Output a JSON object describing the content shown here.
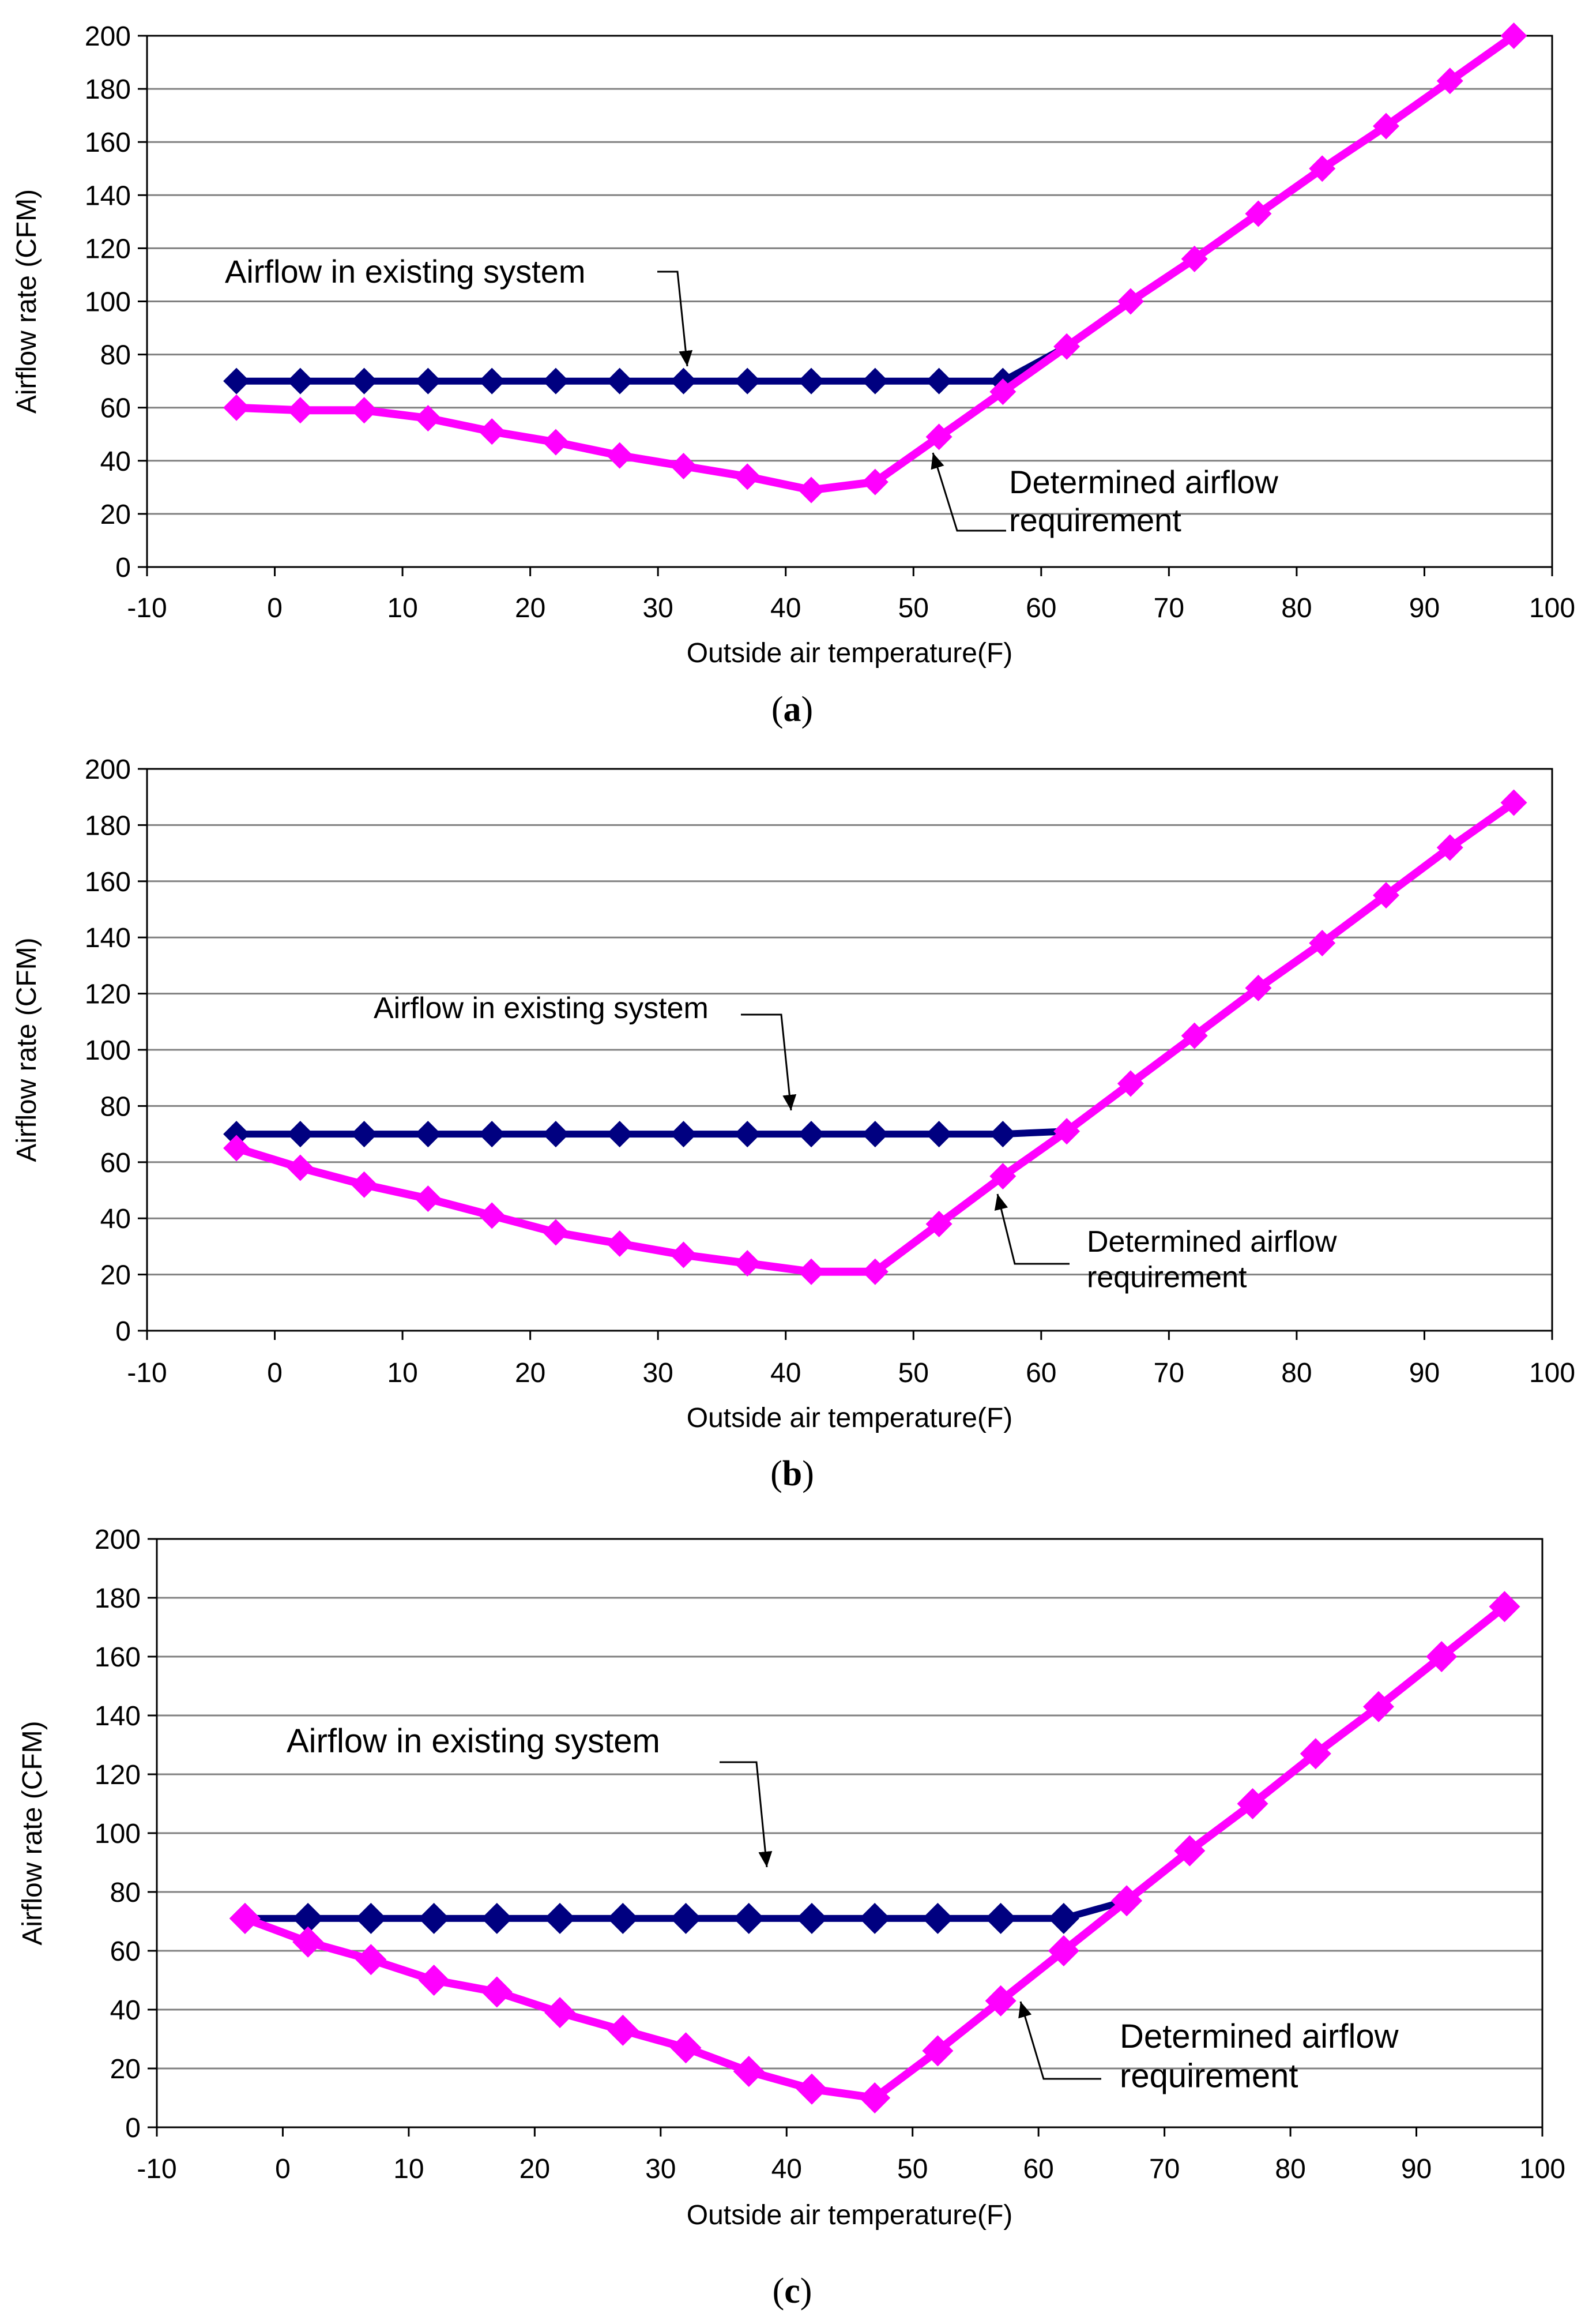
{
  "colors": {
    "existing_line": "#000080",
    "requirement_line": "#FF00FF",
    "grid": "#808080",
    "axis": "#000000",
    "text": "#000000"
  },
  "chart_data": [
    {
      "type": "line",
      "caption_letter": "a",
      "xlabel": "Outside air temperature(F)",
      "ylabel": "Airflow rate (CFM)",
      "xlim": [
        -10,
        100
      ],
      "ylim": [
        0,
        200
      ],
      "xticks": [
        -10,
        0,
        10,
        20,
        30,
        40,
        50,
        60,
        70,
        80,
        90,
        100
      ],
      "yticks": [
        0,
        20,
        40,
        60,
        80,
        100,
        120,
        140,
        160,
        180,
        200
      ],
      "grid": true,
      "x": [
        -3,
        2,
        7,
        12,
        17,
        22,
        27,
        32,
        37,
        42,
        47,
        52,
        57,
        62,
        67,
        72,
        77,
        82,
        87,
        92,
        97
      ],
      "series": [
        {
          "name": "Airflow in existing system",
          "values": [
            70,
            70,
            70,
            70,
            70,
            70,
            70,
            70,
            70,
            70,
            70,
            70,
            70,
            83,
            100,
            116,
            133,
            150,
            166,
            183,
            200
          ],
          "marker_count": 13
        },
        {
          "name": "Determined airflow requirement",
          "values": [
            60,
            59,
            59,
            56,
            51,
            47,
            42,
            38,
            34,
            29,
            32,
            49,
            66,
            83,
            100,
            116,
            133,
            150,
            166,
            183,
            200
          ]
        }
      ],
      "annotations": [
        {
          "text": "Airflow in existing system"
        },
        {
          "text": "Determined airflow",
          "text2": "requirement"
        }
      ]
    },
    {
      "type": "line",
      "caption_letter": "b",
      "xlabel": "Outside air temperature(F)",
      "ylabel": "Airflow rate (CFM)",
      "xlim": [
        -10,
        100
      ],
      "ylim": [
        0,
        200
      ],
      "xticks": [
        -10,
        0,
        10,
        20,
        30,
        40,
        50,
        60,
        70,
        80,
        90,
        100
      ],
      "yticks": [
        0,
        20,
        40,
        60,
        80,
        100,
        120,
        140,
        160,
        180,
        200
      ],
      "grid": true,
      "x": [
        -3,
        2,
        7,
        12,
        17,
        22,
        27,
        32,
        37,
        42,
        47,
        52,
        57,
        62,
        67,
        72,
        77,
        82,
        87,
        92,
        97
      ],
      "series": [
        {
          "name": "Airflow in existing system",
          "values": [
            70,
            70,
            70,
            70,
            70,
            70,
            70,
            70,
            70,
            70,
            70,
            70,
            70,
            71,
            88,
            105,
            122,
            138,
            155,
            172,
            188
          ],
          "marker_count": 13
        },
        {
          "name": "Determined airflow requirement",
          "values": [
            65,
            58,
            52,
            47,
            41,
            35,
            31,
            27,
            24,
            21,
            21,
            38,
            55,
            71,
            88,
            105,
            122,
            138,
            155,
            172,
            188
          ]
        }
      ],
      "annotations": [
        {
          "text": "Airflow in existing system"
        },
        {
          "text": "Determined airflow",
          "text2": "requirement"
        }
      ]
    },
    {
      "type": "line",
      "caption_letter": "c",
      "xlabel": "Outside air temperature(F)",
      "ylabel": "Airflow rate (CFM)",
      "xlim": [
        -10,
        100
      ],
      "ylim": [
        0,
        200
      ],
      "xticks": [
        -10,
        0,
        10,
        20,
        30,
        40,
        50,
        60,
        70,
        80,
        90,
        100
      ],
      "yticks": [
        0,
        20,
        40,
        60,
        80,
        100,
        120,
        140,
        160,
        180,
        200
      ],
      "grid": true,
      "x": [
        -3,
        2,
        7,
        12,
        17,
        22,
        27,
        32,
        37,
        42,
        47,
        52,
        57,
        62,
        67,
        72,
        77,
        82,
        87,
        92,
        97
      ],
      "series": [
        {
          "name": "Airflow in existing system",
          "values": [
            71,
            71,
            71,
            71,
            71,
            71,
            71,
            71,
            71,
            71,
            71,
            71,
            71,
            71,
            77,
            94,
            110,
            127,
            143,
            160,
            177
          ],
          "marker_count": 14
        },
        {
          "name": "Determined airflow requirement",
          "values": [
            71,
            63,
            57,
            50,
            46,
            39,
            33,
            27,
            19,
            13,
            10,
            26,
            43,
            60,
            77,
            94,
            110,
            127,
            143,
            160,
            177
          ]
        }
      ],
      "annotations": [
        {
          "text": "Airflow in existing system"
        },
        {
          "text": "Determined airflow",
          "text2": "requirement"
        }
      ]
    }
  ]
}
